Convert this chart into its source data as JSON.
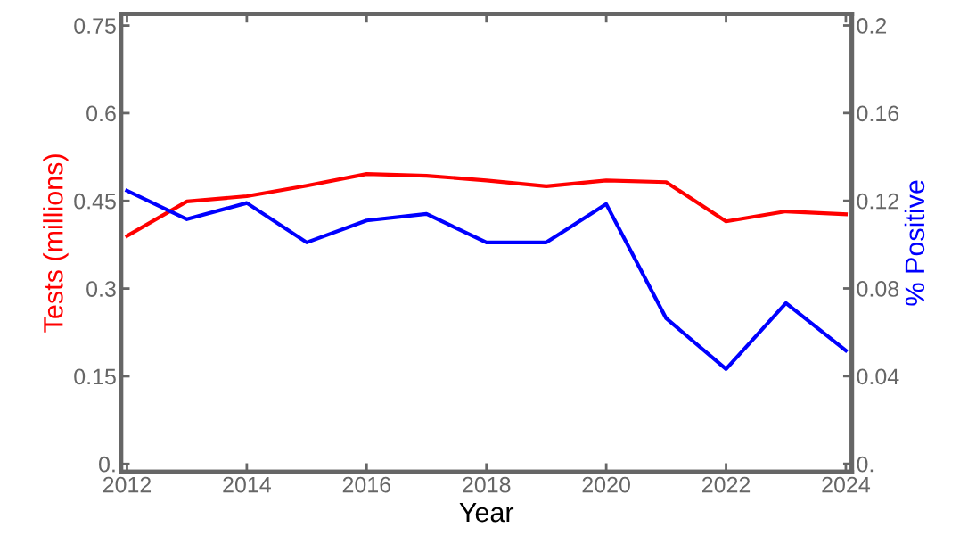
{
  "chart_data": {
    "type": "line",
    "xlabel": "Year",
    "ylabel": "Tests (millions)",
    "y2label": "% Positive",
    "x": [
      2012,
      2013,
      2014,
      2015,
      2016,
      2017,
      2018,
      2019,
      2020,
      2021,
      2022,
      2023,
      2024
    ],
    "series": [
      {
        "color": "#ff0000",
        "values": [
          0.39,
          0.449,
          0.458,
          0.476,
          0.496,
          0.493,
          0.485,
          0.475,
          0.485,
          0.482,
          0.415,
          0.432,
          0.427
        ]
      },
      {
        "color": "#0000ff",
        "axis": "y2",
        "values": [
          0.1246,
          0.1116,
          0.119,
          0.101,
          0.111,
          0.114,
          0.101,
          0.101,
          0.1185,
          0.0664,
          0.0432,
          0.0733,
          0.0517
        ]
      }
    ],
    "xlim": [
      2011.9,
      2024.1
    ],
    "xticks": [
      2012,
      2014,
      2016,
      2018,
      2020,
      2022,
      2024
    ],
    "ylim": [
      -0.0137,
      0.77
    ],
    "yticks": [
      {
        "value": 0,
        "label": "0."
      },
      0.15,
      0.3,
      0.45,
      0.6,
      0.75
    ],
    "y2lim": [
      -0.0037,
      0.2053
    ],
    "y2ticks": [
      {
        "value": 0,
        "label": "0."
      },
      0.04,
      0.08,
      0.12,
      0.16,
      0.2
    ],
    "grid": false,
    "legend": false,
    "marker": "none",
    "line_style": "solid"
  }
}
